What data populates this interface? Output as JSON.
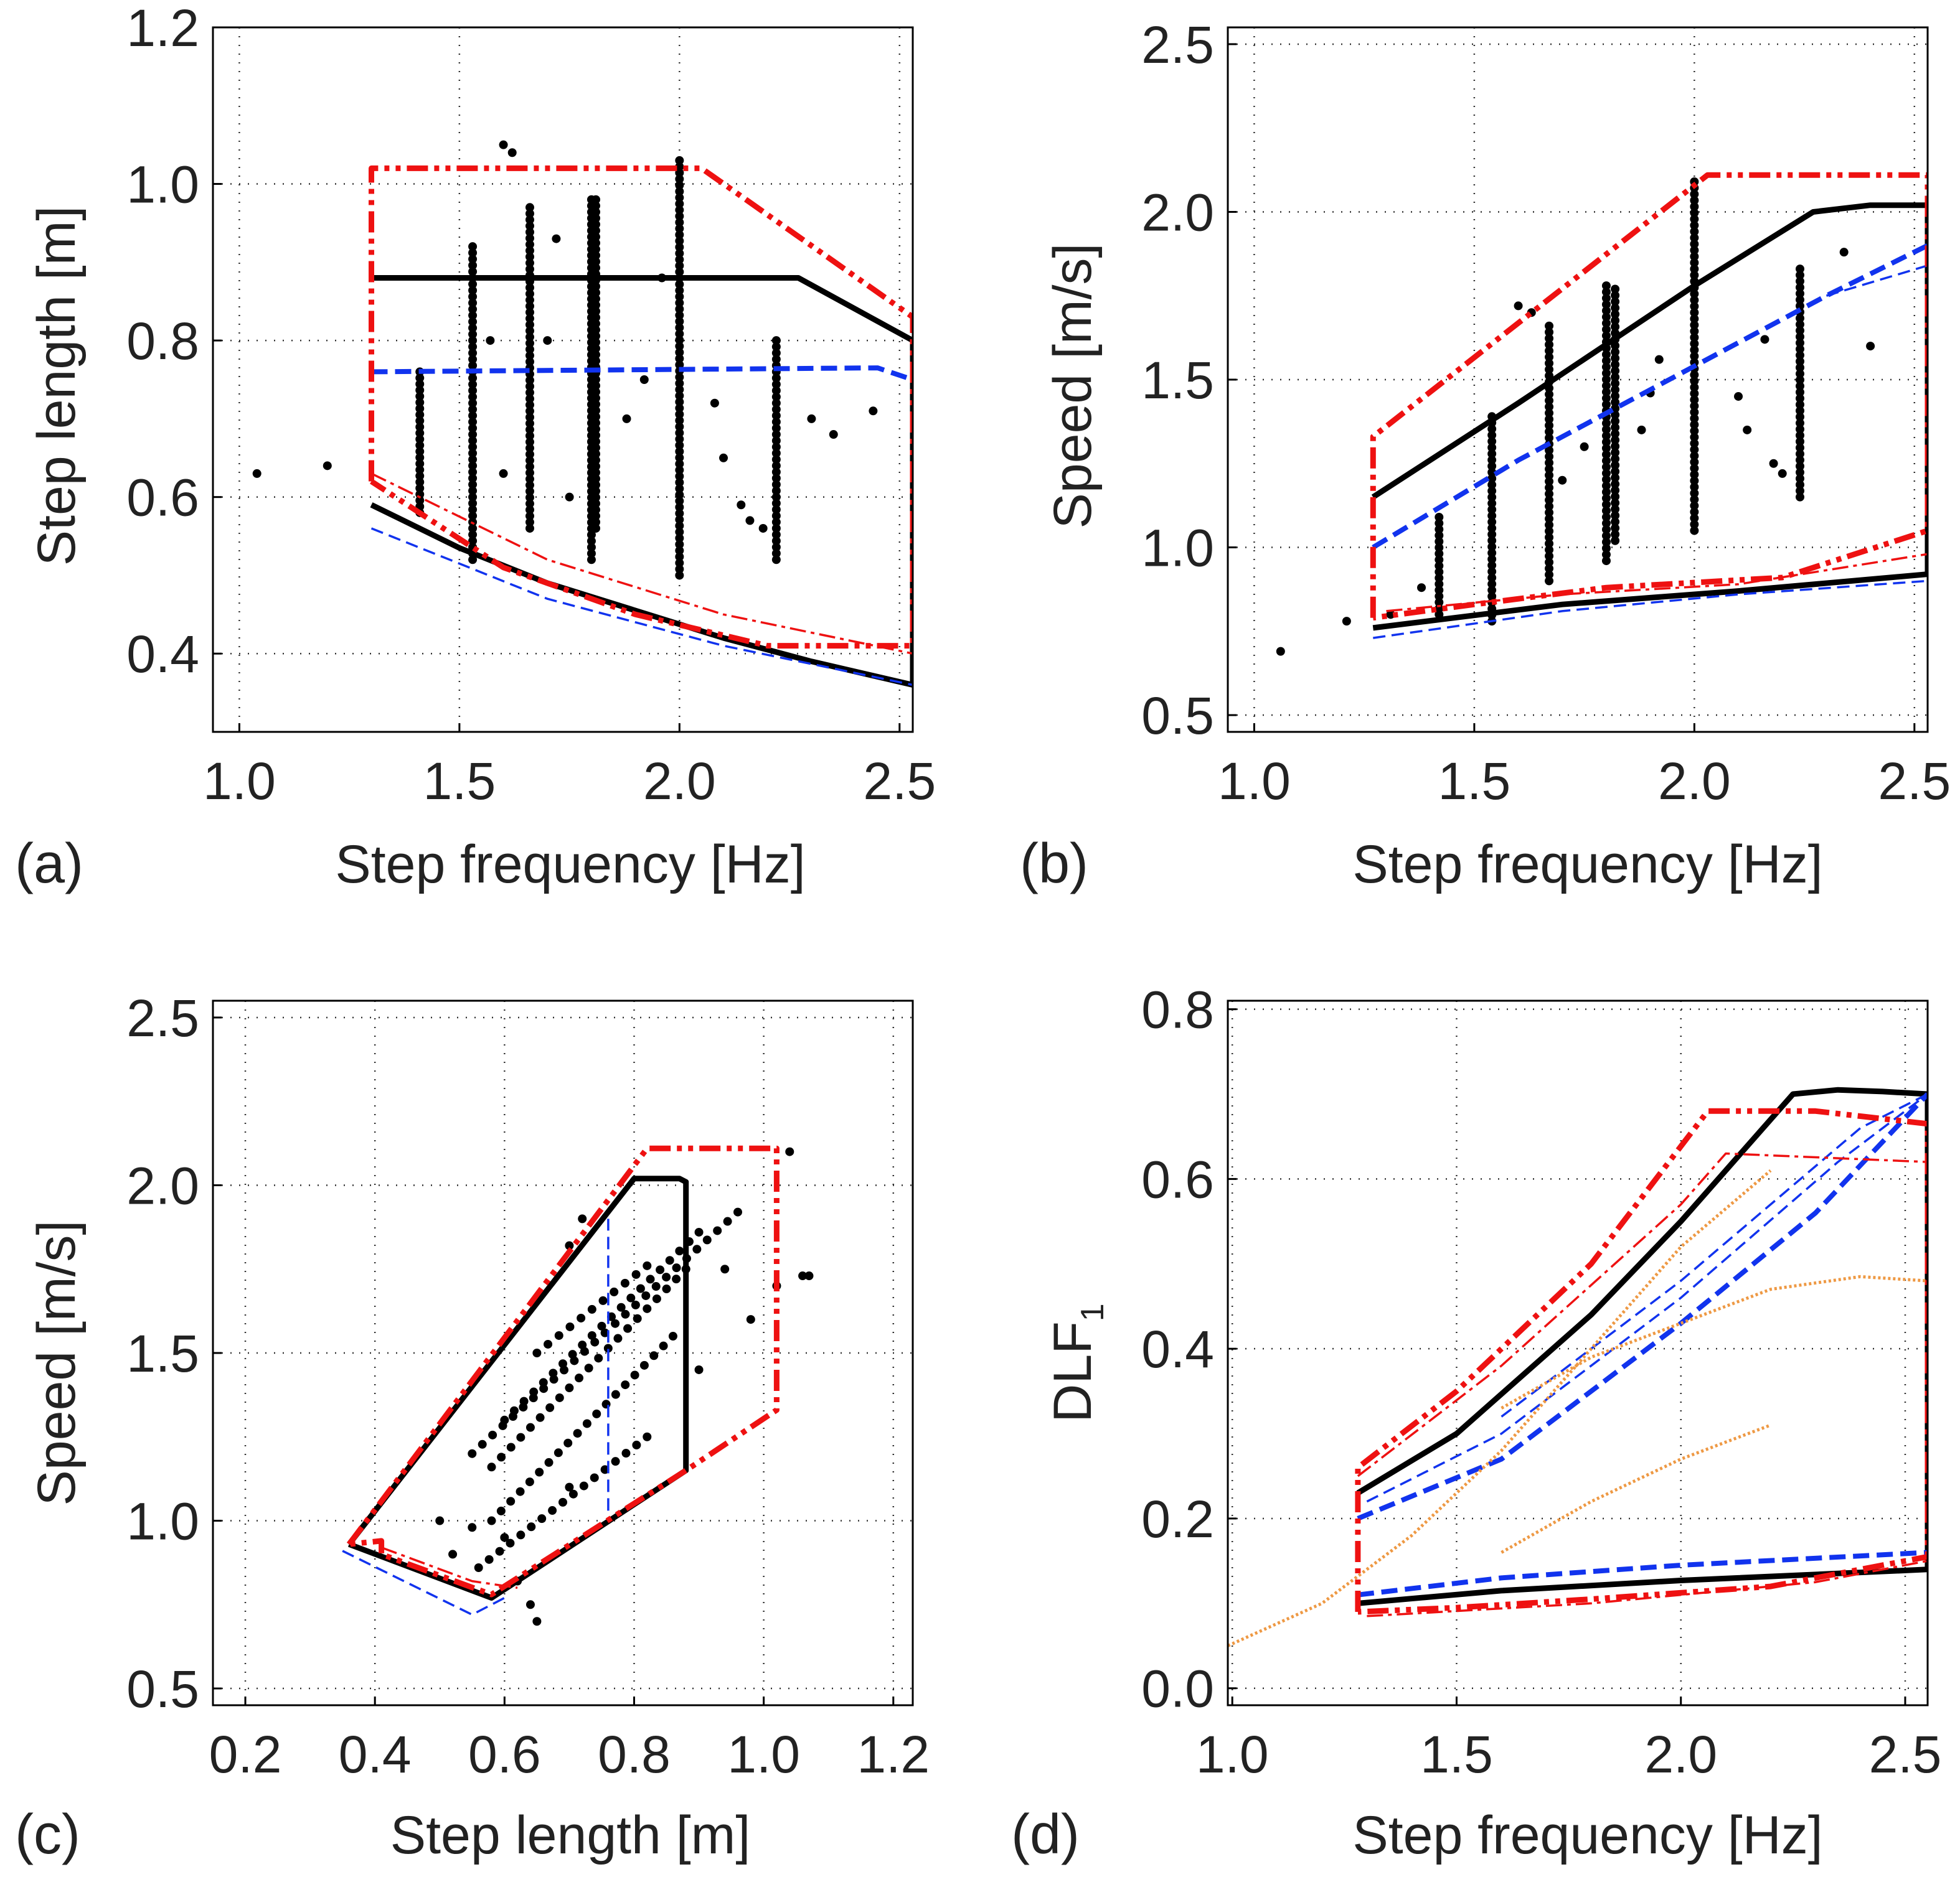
{
  "figure": {
    "panels": [
      "a",
      "b",
      "c",
      "d"
    ]
  },
  "colors": {
    "black_line": "#000000",
    "red_line": "#ee1111",
    "blue_line": "#1133ee",
    "orange_line": "#ee9944",
    "points": "#000000"
  },
  "chart_data": [
    {
      "id": "a",
      "panel_label": "(a)",
      "type": "scatter",
      "xlabel": "Step frequency [Hz]",
      "ylabel": "Step length [m]",
      "xlim": [
        0.94,
        2.53
      ],
      "ylim": [
        0.3,
        1.2
      ],
      "xticks": [
        "1.0",
        "1.5",
        "2.0",
        "2.5"
      ],
      "yticks": [
        "0.4",
        "0.6",
        "0.8",
        "1.0",
        "1.2"
      ],
      "grid": true,
      "series": [
        {
          "name": "black_upper",
          "style": "black",
          "x": [
            1.3,
            2.27,
            2.53
          ],
          "y": [
            0.88,
            0.88,
            0.8
          ]
        },
        {
          "name": "black_lower",
          "style": "black",
          "x": [
            1.3,
            1.5,
            1.7,
            1.9,
            2.1,
            2.3,
            2.53
          ],
          "y": [
            0.59,
            0.535,
            0.49,
            0.455,
            0.42,
            0.39,
            0.36
          ]
        },
        {
          "name": "black_right",
          "style": "black",
          "x": [
            2.53,
            2.53
          ],
          "y": [
            0.8,
            0.36
          ]
        },
        {
          "name": "blue_mean",
          "style": "blue_thick",
          "x": [
            1.3,
            2.45,
            2.53
          ],
          "y": [
            0.76,
            0.765,
            0.75
          ]
        },
        {
          "name": "blue_lower",
          "style": "blue_thin",
          "x": [
            1.3,
            1.7,
            2.1,
            2.53
          ],
          "y": [
            0.56,
            0.47,
            0.41,
            0.36
          ]
        },
        {
          "name": "red_envelope",
          "style": "red_thick",
          "x": [
            1.3,
            1.3,
            2.05,
            2.53,
            2.53,
            2.2,
            1.9,
            1.6,
            1.3
          ],
          "y": [
            0.62,
            1.02,
            1.02,
            0.83,
            0.41,
            0.41,
            0.45,
            0.51,
            0.62
          ]
        },
        {
          "name": "red_thin",
          "style": "red_thin",
          "x": [
            1.3,
            1.7,
            2.1,
            2.53
          ],
          "y": [
            0.63,
            0.52,
            0.45,
            0.4
          ]
        }
      ],
      "scatter": {
        "columns": [
          {
            "x": 1.41,
            "y_min": 0.58,
            "y_max": 0.76
          },
          {
            "x": 1.53,
            "y_min": 0.52,
            "y_max": 0.92
          },
          {
            "x": 1.66,
            "y_min": 0.56,
            "y_max": 0.97
          },
          {
            "x": 1.8,
            "y_min": 0.52,
            "y_max": 0.98
          },
          {
            "x": 1.81,
            "y_min": 0.56,
            "y_max": 0.98
          },
          {
            "x": 2.0,
            "y_min": 0.5,
            "y_max": 1.03
          },
          {
            "x": 2.22,
            "y_min": 0.52,
            "y_max": 0.8
          }
        ],
        "points": [
          [
            1.04,
            0.63
          ],
          [
            1.2,
            0.64
          ],
          [
            1.6,
            1.05
          ],
          [
            1.62,
            1.04
          ],
          [
            1.92,
            0.75
          ],
          [
            1.96,
            0.88
          ],
          [
            2.08,
            0.72
          ],
          [
            2.1,
            0.65
          ],
          [
            2.14,
            0.59
          ],
          [
            2.16,
            0.57
          ],
          [
            2.19,
            0.56
          ],
          [
            2.3,
            0.7
          ],
          [
            2.35,
            0.68
          ],
          [
            2.44,
            0.71
          ],
          [
            1.72,
            0.93
          ],
          [
            1.75,
            0.6
          ],
          [
            1.88,
            0.7
          ],
          [
            1.57,
            0.8
          ],
          [
            1.6,
            0.63
          ],
          [
            1.7,
            0.8
          ]
        ]
      }
    },
    {
      "id": "b",
      "panel_label": "(b)",
      "type": "scatter",
      "xlabel": "Step frequency [Hz]",
      "ylabel": "Speed [m/s]",
      "xlim": [
        0.94,
        2.53
      ],
      "ylim": [
        0.45,
        2.55
      ],
      "xticks": [
        "1.0",
        "1.5",
        "2.0",
        "2.5"
      ],
      "yticks": [
        "0.5",
        "1.0",
        "1.5",
        "2.0",
        "2.5"
      ],
      "grid": true,
      "series": [
        {
          "name": "black_mean",
          "style": "black",
          "x": [
            1.27,
            1.6,
            2.0,
            2.27,
            2.4,
            2.53
          ],
          "y": [
            1.15,
            1.43,
            1.78,
            2.0,
            2.02,
            2.02
          ]
        },
        {
          "name": "black_lower",
          "style": "black",
          "x": [
            1.27,
            1.7,
            2.1,
            2.53
          ],
          "y": [
            0.76,
            0.83,
            0.87,
            0.92
          ]
        },
        {
          "name": "black_right",
          "style": "black",
          "x": [
            2.53,
            2.53
          ],
          "y": [
            2.02,
            0.92
          ]
        },
        {
          "name": "blue_mean",
          "style": "blue_thick",
          "x": [
            1.27,
            1.6,
            2.0,
            2.3,
            2.53
          ],
          "y": [
            1.0,
            1.26,
            1.54,
            1.75,
            1.9
          ]
        },
        {
          "name": "blue_upper_thin",
          "style": "blue_thin",
          "x": [
            2.3,
            2.53
          ],
          "y": [
            1.75,
            1.84
          ]
        },
        {
          "name": "blue_lower",
          "style": "blue_thin",
          "x": [
            1.27,
            1.7,
            2.1,
            2.53
          ],
          "y": [
            0.73,
            0.81,
            0.86,
            0.9
          ]
        },
        {
          "name": "red_envelope",
          "style": "red_thick",
          "x": [
            1.27,
            1.27,
            2.03,
            2.53,
            2.53,
            2.2,
            1.8,
            1.5,
            1.27
          ],
          "y": [
            0.79,
            1.33,
            2.11,
            2.11,
            1.05,
            0.91,
            0.88,
            0.83,
            0.79
          ]
        },
        {
          "name": "red_thin",
          "style": "red_thin",
          "x": [
            1.3,
            1.7,
            2.1,
            2.53
          ],
          "y": [
            0.81,
            0.86,
            0.89,
            0.98
          ]
        }
      ],
      "scatter": {
        "columns": [
          {
            "x": 1.42,
            "y_min": 0.8,
            "y_max": 1.09
          },
          {
            "x": 1.54,
            "y_min": 0.78,
            "y_max": 1.39
          },
          {
            "x": 1.67,
            "y_min": 0.9,
            "y_max": 1.66
          },
          {
            "x": 1.8,
            "y_min": 0.96,
            "y_max": 1.78
          },
          {
            "x": 1.82,
            "y_min": 1.02,
            "y_max": 1.77
          },
          {
            "x": 2.0,
            "y_min": 1.05,
            "y_max": 2.09
          },
          {
            "x": 2.24,
            "y_min": 1.15,
            "y_max": 1.83
          }
        ],
        "points": [
          [
            1.06,
            0.69
          ],
          [
            1.21,
            0.78
          ],
          [
            1.31,
            0.8
          ],
          [
            1.38,
            0.88
          ],
          [
            1.6,
            1.72
          ],
          [
            1.63,
            1.7
          ],
          [
            1.75,
            1.3
          ],
          [
            1.9,
            1.46
          ],
          [
            1.92,
            1.56
          ],
          [
            2.1,
            1.45
          ],
          [
            2.12,
            1.35
          ],
          [
            2.16,
            1.62
          ],
          [
            2.18,
            1.25
          ],
          [
            2.2,
            1.22
          ],
          [
            2.34,
            1.88
          ],
          [
            2.4,
            1.6
          ],
          [
            1.7,
            1.2
          ],
          [
            1.88,
            1.35
          ]
        ]
      }
    },
    {
      "id": "c",
      "panel_label": "(c)",
      "type": "scatter",
      "xlabel": "Step length [m]",
      "ylabel": "Speed [m/s]",
      "xlim": [
        0.15,
        1.23
      ],
      "ylim": [
        0.45,
        2.55
      ],
      "xticks": [
        "0.2",
        "0.4",
        "0.6",
        "0.8",
        "1.0",
        "1.2"
      ],
      "yticks": [
        "0.5",
        "1.0",
        "1.5",
        "2.0",
        "2.5"
      ],
      "grid": true,
      "series": [
        {
          "name": "black_envelope",
          "style": "black",
          "x": [
            0.36,
            0.58,
            0.88,
            0.88,
            0.87,
            0.8,
            0.36
          ],
          "y": [
            0.93,
            0.77,
            1.15,
            2.01,
            2.02,
            2.02,
            0.93
          ]
        },
        {
          "name": "blue_mean",
          "style": "blue_thin",
          "x": [
            0.76,
            0.76
          ],
          "y": [
            1.03,
            1.9
          ]
        },
        {
          "name": "blue_lower",
          "style": "blue_thin",
          "x": [
            0.35,
            0.55,
            0.6
          ],
          "y": [
            0.91,
            0.72,
            0.77
          ]
        },
        {
          "name": "red_envelope",
          "style": "red_thick",
          "x": [
            0.36,
            0.82,
            1.02,
            1.02,
            0.88,
            0.58,
            0.41,
            0.41,
            0.36
          ],
          "y": [
            0.93,
            2.11,
            2.11,
            1.33,
            1.15,
            0.78,
            0.9,
            0.94,
            0.93
          ]
        },
        {
          "name": "red_thin",
          "style": "red_thin",
          "x": [
            0.41,
            0.55,
            0.62
          ],
          "y": [
            0.92,
            0.82,
            0.8
          ]
        }
      ],
      "scatter": {
        "lines": [
          {
            "x1": 0.56,
            "y1": 0.86,
            "x2": 0.82,
            "y2": 1.25
          },
          {
            "x1": 0.58,
            "y1": 1.0,
            "x2": 0.86,
            "y2": 1.55
          },
          {
            "x1": 0.58,
            "y1": 1.16,
            "x2": 0.88,
            "y2": 1.75
          },
          {
            "x1": 0.6,
            "y1": 1.3,
            "x2": 0.9,
            "y2": 1.86
          },
          {
            "x1": 0.55,
            "y1": 1.2,
            "x2": 0.96,
            "y2": 1.92
          },
          {
            "x1": 0.65,
            "y1": 1.5,
            "x2": 0.82,
            "y2": 1.76
          }
        ],
        "points": [
          [
            0.5,
            1.0
          ],
          [
            0.52,
            0.9
          ],
          [
            0.55,
            0.98
          ],
          [
            0.62,
            0.82
          ],
          [
            0.64,
            0.75
          ],
          [
            0.65,
            0.7
          ],
          [
            0.7,
            1.82
          ],
          [
            0.72,
            1.9
          ],
          [
            0.9,
            1.45
          ],
          [
            0.94,
            1.75
          ],
          [
            0.98,
            1.6
          ],
          [
            1.02,
            1.7
          ],
          [
            1.04,
            2.1
          ],
          [
            1.06,
            1.73
          ],
          [
            1.07,
            1.73
          ],
          [
            0.6,
            0.95
          ],
          [
            0.7,
            1.1
          ]
        ]
      }
    },
    {
      "id": "d",
      "panel_label": "(d)",
      "type": "line",
      "xlabel": "Step frequency [Hz]",
      "ylabel": "DLF",
      "ylabel_sub": "1",
      "xlim": [
        0.99,
        2.55
      ],
      "ylim": [
        -0.02,
        0.81
      ],
      "xticks": [
        "1.0",
        "1.5",
        "2.0",
        "2.5"
      ],
      "yticks": [
        "0.0",
        "0.2",
        "0.4",
        "0.6",
        "0.8"
      ],
      "grid": true,
      "series": [
        {
          "name": "black_mean",
          "style": "black",
          "x": [
            1.28,
            1.5,
            1.8,
            2.0,
            2.25,
            2.35,
            2.45,
            2.55
          ],
          "y": [
            0.23,
            0.3,
            0.44,
            0.55,
            0.7,
            0.705,
            0.703,
            0.7
          ]
        },
        {
          "name": "black_lower",
          "style": "black",
          "x": [
            1.28,
            1.6,
            2.0,
            2.55
          ],
          "y": [
            0.1,
            0.115,
            0.127,
            0.14
          ]
        },
        {
          "name": "black_right",
          "style": "black",
          "x": [
            2.55,
            2.55
          ],
          "y": [
            0.7,
            0.14
          ]
        },
        {
          "name": "blue_mean",
          "style": "blue_thick",
          "x": [
            1.28,
            1.6,
            2.0,
            2.3,
            2.55
          ],
          "y": [
            0.2,
            0.27,
            0.43,
            0.56,
            0.7
          ]
        },
        {
          "name": "blue_thin_1",
          "style": "blue_thin",
          "x": [
            1.3,
            1.6,
            2.0,
            2.35,
            2.55
          ],
          "y": [
            0.22,
            0.3,
            0.46,
            0.62,
            0.7
          ]
        },
        {
          "name": "blue_thin_2",
          "style": "blue_thin",
          "x": [
            1.6,
            2.0,
            2.4,
            2.55
          ],
          "y": [
            0.32,
            0.48,
            0.66,
            0.7
          ]
        },
        {
          "name": "blue_lower",
          "style": "blue_thick",
          "x": [
            1.28,
            1.6,
            2.0,
            2.55
          ],
          "y": [
            0.11,
            0.13,
            0.145,
            0.16
          ]
        },
        {
          "name": "red_envelope",
          "style": "red_thick",
          "x": [
            1.28,
            1.28,
            1.5,
            1.8,
            2.06,
            2.3,
            2.55,
            2.55,
            2.2,
            1.8,
            1.5,
            1.28
          ],
          "y": [
            0.09,
            0.26,
            0.35,
            0.5,
            0.68,
            0.68,
            0.665,
            0.155,
            0.12,
            0.105,
            0.095,
            0.09
          ]
        },
        {
          "name": "red_thin_1",
          "style": "red_thin",
          "x": [
            1.28,
            1.6,
            2.0,
            2.1,
            2.55
          ],
          "y": [
            0.25,
            0.38,
            0.57,
            0.63,
            0.62
          ]
        },
        {
          "name": "red_thin_2",
          "style": "red_thin",
          "x": [
            1.3,
            1.8,
            2.3,
            2.55
          ],
          "y": [
            0.085,
            0.1,
            0.125,
            0.15
          ]
        },
        {
          "name": "orange_1",
          "style": "orange",
          "x": [
            0.99,
            1.2,
            1.4,
            1.6,
            1.8,
            2.0,
            2.2
          ],
          "y": [
            0.05,
            0.1,
            0.18,
            0.28,
            0.4,
            0.52,
            0.61
          ]
        },
        {
          "name": "orange_2",
          "style": "orange",
          "x": [
            1.6,
            1.8,
            2.0,
            2.2,
            2.4,
            2.55
          ],
          "y": [
            0.33,
            0.39,
            0.43,
            0.47,
            0.485,
            0.48
          ]
        },
        {
          "name": "orange_3",
          "style": "orange",
          "x": [
            1.6,
            1.8,
            2.0,
            2.2
          ],
          "y": [
            0.16,
            0.22,
            0.27,
            0.31
          ]
        }
      ]
    }
  ]
}
